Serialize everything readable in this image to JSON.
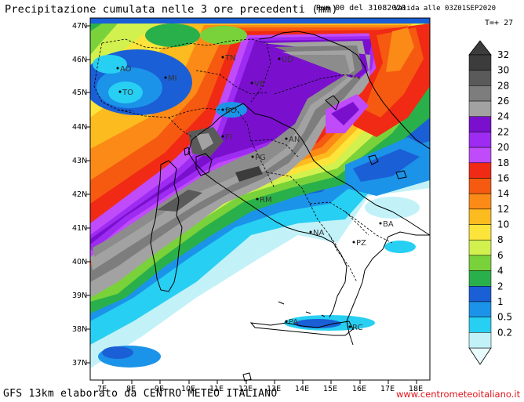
{
  "header": {
    "title": "Precipitazione cumulata nelle 3 ore precedenti (mm)",
    "run": "Run 00 del 31082020",
    "valid": "Valida alle 03Z01SEP2020",
    "step": "T=+ 27"
  },
  "footer": {
    "model": "GFS 13km elaborato da CENTRO METEO ITALIANO",
    "website": "www.centrometeoitaliano.it"
  },
  "axes": {
    "lat_labels": [
      "47N",
      "46N",
      "45N",
      "44N",
      "43N",
      "42N",
      "41N",
      "40N",
      "39N",
      "38N",
      "37N"
    ],
    "lon_labels": [
      "7E",
      "8E",
      "9E",
      "10E",
      "11E",
      "12E",
      "13E",
      "14E",
      "15E",
      "16E",
      "17E",
      "18E"
    ]
  },
  "cities": [
    {
      "code": "AO"
    },
    {
      "code": "MI"
    },
    {
      "code": "TO"
    },
    {
      "code": "TN"
    },
    {
      "code": "UD"
    },
    {
      "code": "VE"
    },
    {
      "code": "BO"
    },
    {
      "code": "FI"
    },
    {
      "code": "PG"
    },
    {
      "code": "AN"
    },
    {
      "code": "RM"
    },
    {
      "code": "NA"
    },
    {
      "code": "BA"
    },
    {
      "code": "PZ"
    },
    {
      "code": "PA"
    },
    {
      "code": "RC"
    }
  ],
  "legend": {
    "levels": [
      "32",
      "30",
      "28",
      "26",
      "24",
      "22",
      "20",
      "18",
      "16",
      "14",
      "12",
      "10",
      "8",
      "6",
      "4",
      "2",
      "1",
      "0.5",
      "0.2"
    ],
    "colors": [
      "#3c3c3c",
      "#5a5a5a",
      "#7d7d7d",
      "#a2a2a2",
      "#7a10ce",
      "#9d2bf1",
      "#c04bfb",
      "#f02a14",
      "#f55a10",
      "#fb8b16",
      "#fcbb1e",
      "#fde43a",
      "#d2f04e",
      "#79d23a",
      "#2ab04a",
      "#1a5fd6",
      "#1b93e8",
      "#27cff2",
      "#c2f2f8"
    ]
  }
}
